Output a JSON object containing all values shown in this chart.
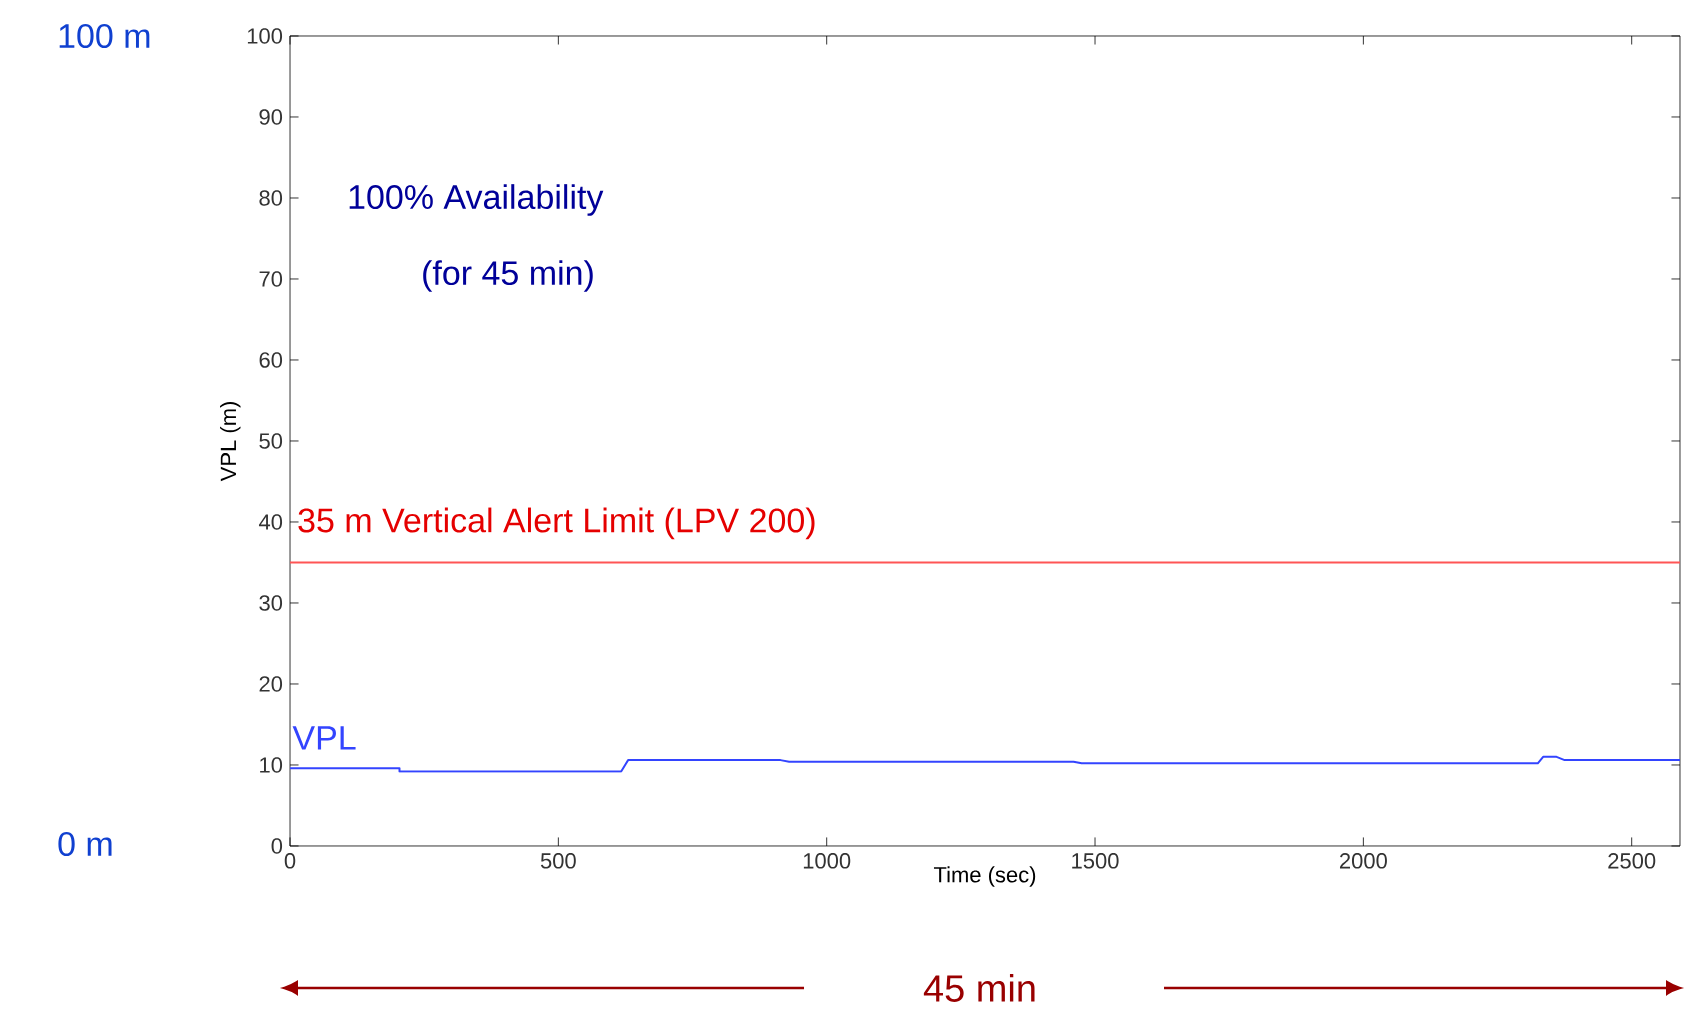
{
  "chart_data": {
    "type": "line",
    "xlabel": "Time (sec)",
    "ylabel": "VPL (m)",
    "x": [
      0,
      204,
      204,
      617,
      630,
      914,
      930,
      1460,
      1475,
      2325,
      2335,
      2360,
      2375,
      2590
    ],
    "series": [
      {
        "name": "VPL",
        "color": "#3344ff",
        "values": [
          9.6,
          9.6,
          9.2,
          9.2,
          10.6,
          10.6,
          10.4,
          10.4,
          10.2,
          10.2,
          11.0,
          11.0,
          10.6,
          10.6
        ]
      }
    ],
    "xlim": [
      0,
      2590
    ],
    "ylim": [
      0,
      100
    ],
    "xticks": [
      0,
      500,
      1000,
      1500,
      2000,
      2500
    ],
    "yticks": [
      0,
      10,
      20,
      30,
      40,
      50,
      60,
      70,
      80,
      90,
      100
    ],
    "ref_lines": [
      {
        "axis": "y",
        "value": 35,
        "label": "35 m Vertical Alert Limit (LPV 200)",
        "color": "#ff5555"
      }
    ],
    "annotations": [
      "100% Availability",
      "(for 45 min)",
      "100 m",
      "0 m",
      "45 min"
    ],
    "legend": false,
    "grid": false,
    "marker": "none",
    "line_style": "solid"
  }
}
